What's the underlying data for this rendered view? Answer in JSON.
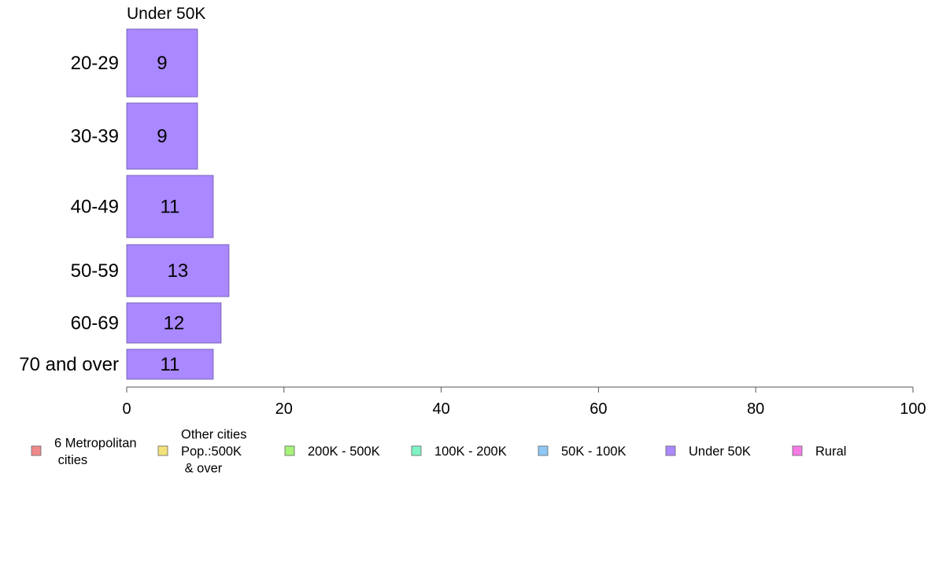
{
  "chart_data": {
    "type": "bar",
    "orientation": "horizontal",
    "title": "Under 50K",
    "categories": [
      "20-29",
      "30-39",
      "40-49",
      "50-59",
      "60-69",
      "70 and over"
    ],
    "series": [
      {
        "name": "Under 50K",
        "values": [
          9,
          9,
          11,
          13,
          12,
          11
        ],
        "color": "#aa88ff"
      }
    ],
    "xlim": [
      0,
      100
    ],
    "xticks": [
      0,
      20,
      40,
      60,
      80,
      100
    ],
    "grid": false,
    "legend_position": "bottom",
    "legend": [
      {
        "label_lines": [
          "6 Metropolitan",
          " cities"
        ],
        "color": "#f08a8a"
      },
      {
        "label_lines": [
          "Other cities",
          "Pop.:500K",
          " & over"
        ],
        "color": "#f3e27a"
      },
      {
        "label_lines": [
          "200K - 500K"
        ],
        "color": "#a6f27a"
      },
      {
        "label_lines": [
          "100K - 200K"
        ],
        "color": "#7ef2c2"
      },
      {
        "label_lines": [
          "50K - 100K"
        ],
        "color": "#8ec7f5"
      },
      {
        "label_lines": [
          "Under 50K"
        ],
        "color": "#aa88ff"
      },
      {
        "label_lines": [
          "Rural"
        ],
        "color": "#f57ae6"
      }
    ]
  }
}
